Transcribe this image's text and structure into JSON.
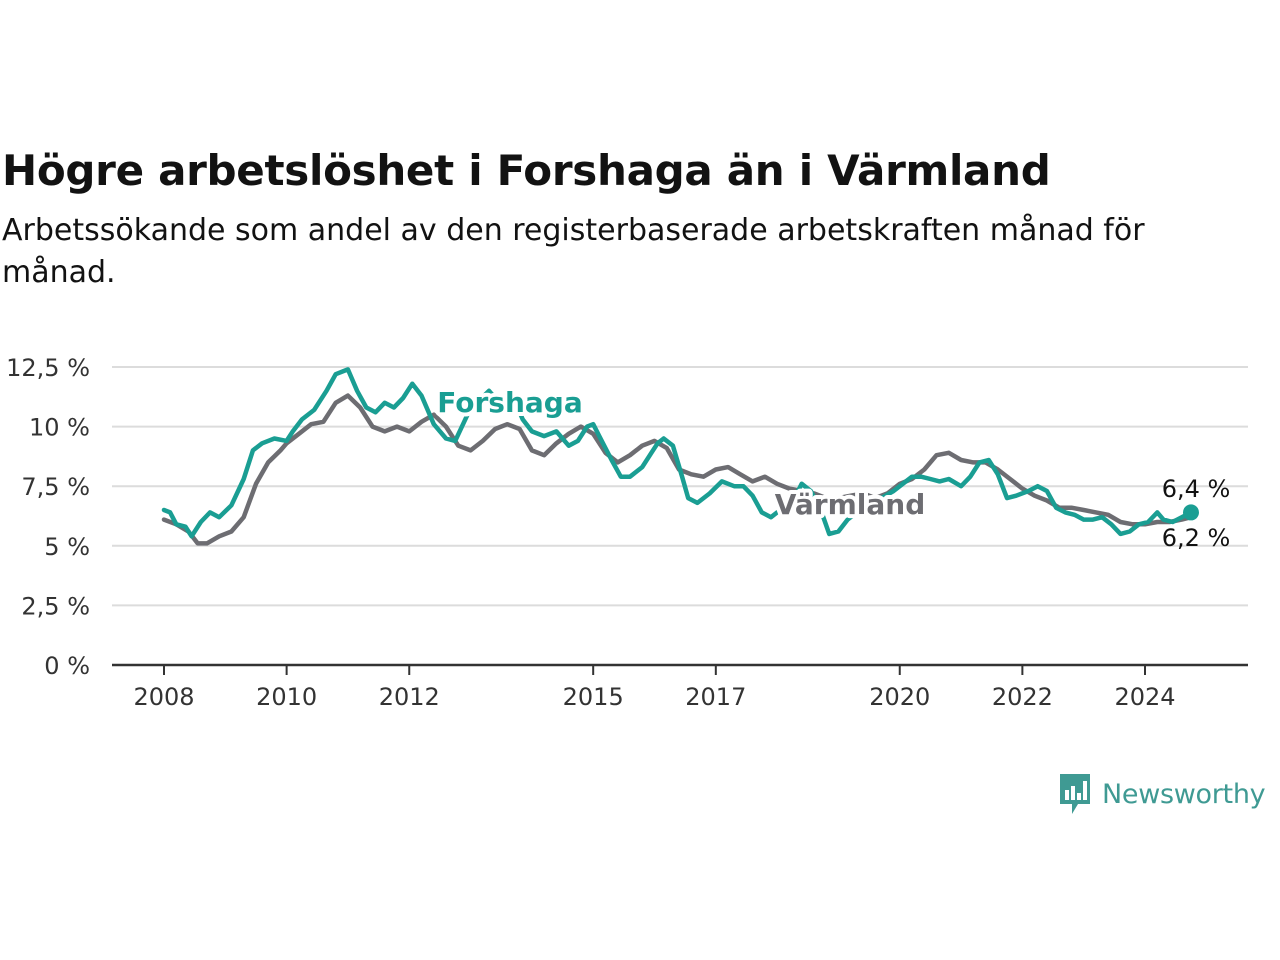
{
  "header": {
    "title": "Högre arbetslöshet i Forshaga än i Värmland",
    "subtitle": "Arbetssökande som andel av den registerbaserade arbetskraften månad för månad."
  },
  "brand": {
    "name": "Newsworthy",
    "color": "#3f9a93"
  },
  "chart_data": {
    "type": "line",
    "x_unit": "year (decimal)",
    "y_unit": "%",
    "ylim": [
      0,
      12.5
    ],
    "xlim": [
      2007.0,
      2025.5
    ],
    "yticks": [
      0,
      2.5,
      5,
      7.5,
      10,
      12.5
    ],
    "ytick_labels": [
      "0 %",
      "2,5 %",
      "5 %",
      "7,5 %",
      "10 %",
      "12,5 %"
    ],
    "xticks": [
      2008,
      2010,
      2012,
      2015,
      2017,
      2020,
      2022,
      2024
    ],
    "xtick_labels": [
      "2008",
      "2010",
      "2012",
      "2015",
      "2017",
      "2020",
      "2022",
      "2024"
    ],
    "grid": true,
    "series": [
      {
        "name": "Värmland",
        "color": "#6d6d72",
        "end_label": "6,2 %",
        "points": [
          [
            2008.0,
            6.1
          ],
          [
            2008.2,
            5.9
          ],
          [
            2008.4,
            5.6
          ],
          [
            2008.55,
            5.1
          ],
          [
            2008.7,
            5.1
          ],
          [
            2008.9,
            5.4
          ],
          [
            2009.1,
            5.6
          ],
          [
            2009.3,
            6.2
          ],
          [
            2009.5,
            7.6
          ],
          [
            2009.7,
            8.5
          ],
          [
            2009.9,
            9.0
          ],
          [
            2010.0,
            9.3
          ],
          [
            2010.2,
            9.7
          ],
          [
            2010.4,
            10.1
          ],
          [
            2010.6,
            10.2
          ],
          [
            2010.8,
            11.0
          ],
          [
            2011.0,
            11.3
          ],
          [
            2011.2,
            10.8
          ],
          [
            2011.4,
            10.0
          ],
          [
            2011.6,
            9.8
          ],
          [
            2011.8,
            10.0
          ],
          [
            2012.0,
            9.8
          ],
          [
            2012.2,
            10.2
          ],
          [
            2012.4,
            10.5
          ],
          [
            2012.6,
            10.0
          ],
          [
            2012.8,
            9.2
          ],
          [
            2013.0,
            9.0
          ],
          [
            2013.2,
            9.4
          ],
          [
            2013.4,
            9.9
          ],
          [
            2013.6,
            10.1
          ],
          [
            2013.8,
            9.9
          ],
          [
            2014.0,
            9.0
          ],
          [
            2014.2,
            8.8
          ],
          [
            2014.4,
            9.3
          ],
          [
            2014.6,
            9.7
          ],
          [
            2014.8,
            10.0
          ],
          [
            2015.0,
            9.7
          ],
          [
            2015.2,
            8.9
          ],
          [
            2015.4,
            8.5
          ],
          [
            2015.6,
            8.8
          ],
          [
            2015.8,
            9.2
          ],
          [
            2016.0,
            9.4
          ],
          [
            2016.2,
            9.1
          ],
          [
            2016.4,
            8.2
          ],
          [
            2016.6,
            8.0
          ],
          [
            2016.8,
            7.9
          ],
          [
            2017.0,
            8.2
          ],
          [
            2017.2,
            8.3
          ],
          [
            2017.4,
            8.0
          ],
          [
            2017.6,
            7.7
          ],
          [
            2017.8,
            7.9
          ],
          [
            2018.0,
            7.6
          ],
          [
            2018.2,
            7.4
          ],
          [
            2018.4,
            7.3
          ],
          [
            2018.6,
            7.2
          ],
          [
            2018.8,
            7.0
          ],
          [
            2019.0,
            7.0
          ],
          [
            2019.2,
            7.1
          ],
          [
            2019.4,
            7.2
          ],
          [
            2019.6,
            7.0
          ],
          [
            2019.8,
            7.2
          ],
          [
            2020.0,
            7.6
          ],
          [
            2020.2,
            7.8
          ],
          [
            2020.4,
            8.2
          ],
          [
            2020.6,
            8.8
          ],
          [
            2020.8,
            8.9
          ],
          [
            2021.0,
            8.6
          ],
          [
            2021.2,
            8.5
          ],
          [
            2021.4,
            8.5
          ],
          [
            2021.6,
            8.2
          ],
          [
            2021.8,
            7.8
          ],
          [
            2022.0,
            7.4
          ],
          [
            2022.2,
            7.1
          ],
          [
            2022.4,
            6.9
          ],
          [
            2022.6,
            6.6
          ],
          [
            2022.8,
            6.6
          ],
          [
            2023.0,
            6.5
          ],
          [
            2023.2,
            6.4
          ],
          [
            2023.4,
            6.3
          ],
          [
            2023.6,
            6.0
          ],
          [
            2023.8,
            5.9
          ],
          [
            2024.0,
            5.9
          ],
          [
            2024.2,
            6.0
          ],
          [
            2024.4,
            6.0
          ],
          [
            2024.6,
            6.1
          ],
          [
            2024.75,
            6.2
          ]
        ]
      },
      {
        "name": "Forshaga",
        "color": "#1a9e93",
        "end_label": "6,4 %",
        "points": [
          [
            2008.0,
            6.5
          ],
          [
            2008.1,
            6.4
          ],
          [
            2008.2,
            5.9
          ],
          [
            2008.35,
            5.8
          ],
          [
            2008.45,
            5.4
          ],
          [
            2008.6,
            6.0
          ],
          [
            2008.75,
            6.4
          ],
          [
            2008.9,
            6.2
          ],
          [
            2009.1,
            6.7
          ],
          [
            2009.3,
            7.8
          ],
          [
            2009.45,
            9.0
          ],
          [
            2009.6,
            9.3
          ],
          [
            2009.8,
            9.5
          ],
          [
            2010.0,
            9.4
          ],
          [
            2010.1,
            9.8
          ],
          [
            2010.25,
            10.3
          ],
          [
            2010.45,
            10.7
          ],
          [
            2010.65,
            11.5
          ],
          [
            2010.8,
            12.2
          ],
          [
            2011.0,
            12.4
          ],
          [
            2011.15,
            11.5
          ],
          [
            2011.3,
            10.8
          ],
          [
            2011.45,
            10.6
          ],
          [
            2011.6,
            11.0
          ],
          [
            2011.75,
            10.8
          ],
          [
            2011.9,
            11.2
          ],
          [
            2012.05,
            11.8
          ],
          [
            2012.2,
            11.3
          ],
          [
            2012.4,
            10.1
          ],
          [
            2012.6,
            9.5
          ],
          [
            2012.75,
            9.4
          ],
          [
            2012.95,
            10.5
          ],
          [
            2013.1,
            11.0
          ],
          [
            2013.3,
            11.5
          ],
          [
            2013.5,
            10.9
          ],
          [
            2013.65,
            11.5
          ],
          [
            2013.85,
            10.3
          ],
          [
            2014.0,
            9.8
          ],
          [
            2014.2,
            9.6
          ],
          [
            2014.4,
            9.8
          ],
          [
            2014.6,
            9.2
          ],
          [
            2014.75,
            9.4
          ],
          [
            2014.9,
            10.0
          ],
          [
            2015.0,
            10.1
          ],
          [
            2015.1,
            9.6
          ],
          [
            2015.3,
            8.6
          ],
          [
            2015.45,
            7.9
          ],
          [
            2015.6,
            7.9
          ],
          [
            2015.8,
            8.3
          ],
          [
            2015.95,
            8.9
          ],
          [
            2016.05,
            9.3
          ],
          [
            2016.15,
            9.5
          ],
          [
            2016.3,
            9.2
          ],
          [
            2016.45,
            7.9
          ],
          [
            2016.55,
            7.0
          ],
          [
            2016.7,
            6.8
          ],
          [
            2016.9,
            7.2
          ],
          [
            2017.1,
            7.7
          ],
          [
            2017.3,
            7.5
          ],
          [
            2017.45,
            7.5
          ],
          [
            2017.6,
            7.1
          ],
          [
            2017.75,
            6.4
          ],
          [
            2017.9,
            6.2
          ],
          [
            2018.05,
            6.5
          ],
          [
            2018.2,
            6.6
          ],
          [
            2018.4,
            7.6
          ],
          [
            2018.55,
            7.3
          ],
          [
            2018.7,
            6.6
          ],
          [
            2018.85,
            5.5
          ],
          [
            2019.0,
            5.6
          ],
          [
            2019.15,
            6.1
          ],
          [
            2019.3,
            6.4
          ],
          [
            2019.5,
            6.7
          ],
          [
            2019.7,
            7.0
          ],
          [
            2019.9,
            7.3
          ],
          [
            2020.05,
            7.6
          ],
          [
            2020.2,
            7.9
          ],
          [
            2020.35,
            7.9
          ],
          [
            2020.5,
            7.8
          ],
          [
            2020.65,
            7.7
          ],
          [
            2020.8,
            7.8
          ],
          [
            2021.0,
            7.5
          ],
          [
            2021.15,
            7.9
          ],
          [
            2021.3,
            8.5
          ],
          [
            2021.45,
            8.6
          ],
          [
            2021.6,
            8.0
          ],
          [
            2021.75,
            7.0
          ],
          [
            2021.9,
            7.1
          ],
          [
            2022.1,
            7.3
          ],
          [
            2022.25,
            7.5
          ],
          [
            2022.4,
            7.3
          ],
          [
            2022.55,
            6.6
          ],
          [
            2022.7,
            6.4
          ],
          [
            2022.85,
            6.3
          ],
          [
            2023.0,
            6.1
          ],
          [
            2023.15,
            6.1
          ],
          [
            2023.3,
            6.2
          ],
          [
            2023.45,
            5.9
          ],
          [
            2023.6,
            5.5
          ],
          [
            2023.75,
            5.6
          ],
          [
            2023.9,
            5.9
          ],
          [
            2024.05,
            6.0
          ],
          [
            2024.2,
            6.4
          ],
          [
            2024.3,
            6.1
          ],
          [
            2024.45,
            6.0
          ],
          [
            2024.6,
            6.2
          ],
          [
            2024.75,
            6.4
          ]
        ]
      }
    ]
  }
}
